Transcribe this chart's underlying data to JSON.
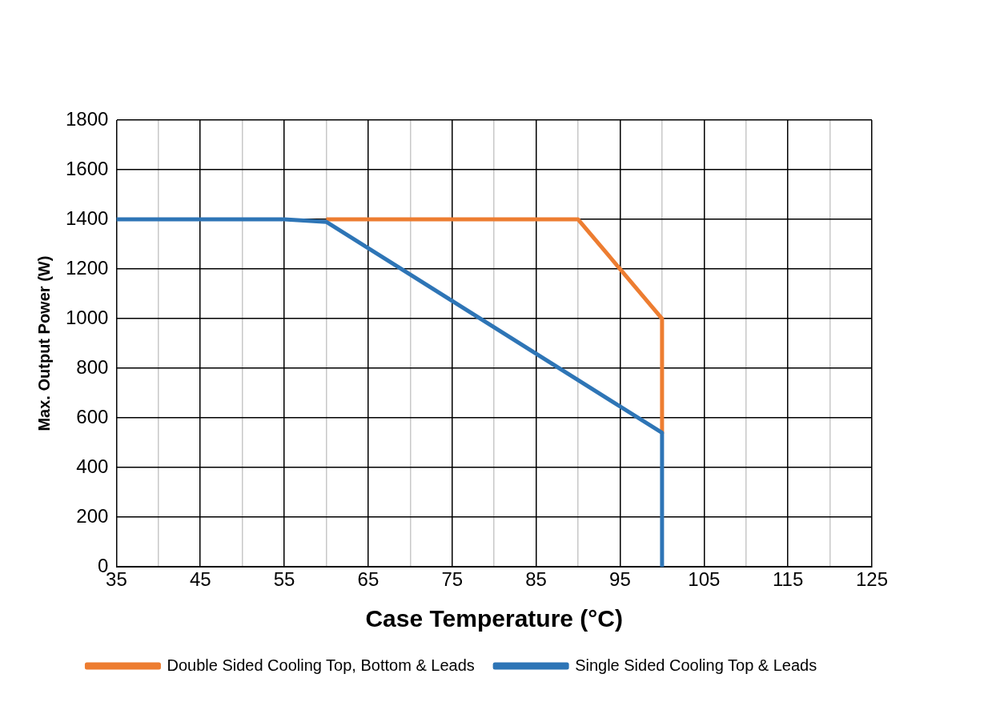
{
  "chart_data": {
    "type": "line",
    "xlabel": "Case Temperature (°C)",
    "ylabel": "Max. Output Power (W)",
    "xlim": [
      35,
      125
    ],
    "xticks": [
      35,
      {
        "value": 40,
        "label": null
      },
      45,
      {
        "value": 50,
        "label": null
      },
      55,
      {
        "value": 60,
        "label": null
      },
      65,
      {
        "value": 70,
        "label": null
      },
      75,
      {
        "value": 80,
        "label": null
      },
      85,
      {
        "value": 90,
        "label": null
      },
      95,
      {
        "value": 100,
        "label": null
      },
      105,
      {
        "value": 110,
        "label": null
      },
      115,
      {
        "value": 120,
        "label": null
      },
      125
    ],
    "ylim": [
      0,
      1800
    ],
    "yticks": [
      0,
      200,
      400,
      600,
      800,
      1000,
      1200,
      1400,
      1600,
      1800
    ],
    "grid": true,
    "legend": "bottom",
    "marker": "none",
    "line_style": "solid",
    "series": [
      {
        "name": "Double Sided Cooling Top, Bottom & Leads",
        "color": "#ed7d31",
        "x": [
          60,
          90,
          100,
          100
        ],
        "values": [
          1400,
          1400,
          1000,
          540
        ]
      },
      {
        "name": "Single Sided Cooling Top & Leads",
        "color": "#2e75b6",
        "x": [
          35,
          55,
          60,
          100,
          100
        ],
        "values": [
          1400,
          1400,
          1390,
          540,
          0
        ]
      }
    ]
  }
}
